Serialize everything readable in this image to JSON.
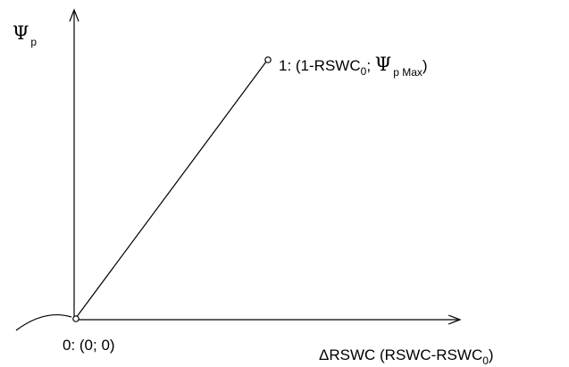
{
  "diagram": {
    "y_axis_label": {
      "symbol": "Ψ",
      "subscript": "p"
    },
    "x_axis_label": {
      "prefix": "Δ",
      "text": "RSWC (RSWC-RSWC",
      "subscript": "0",
      "suffix": ")"
    },
    "point_0": {
      "label": "0: (0; 0)"
    },
    "point_1": {
      "label_prefix": "1: (1-RSWC",
      "label_sub_0": "0",
      "label_mid": "; ",
      "symbol": "Ψ",
      "subscript": "p Max",
      "label_suffix": ")"
    },
    "colors": {
      "line": "#000000",
      "background": "#ffffff"
    }
  }
}
